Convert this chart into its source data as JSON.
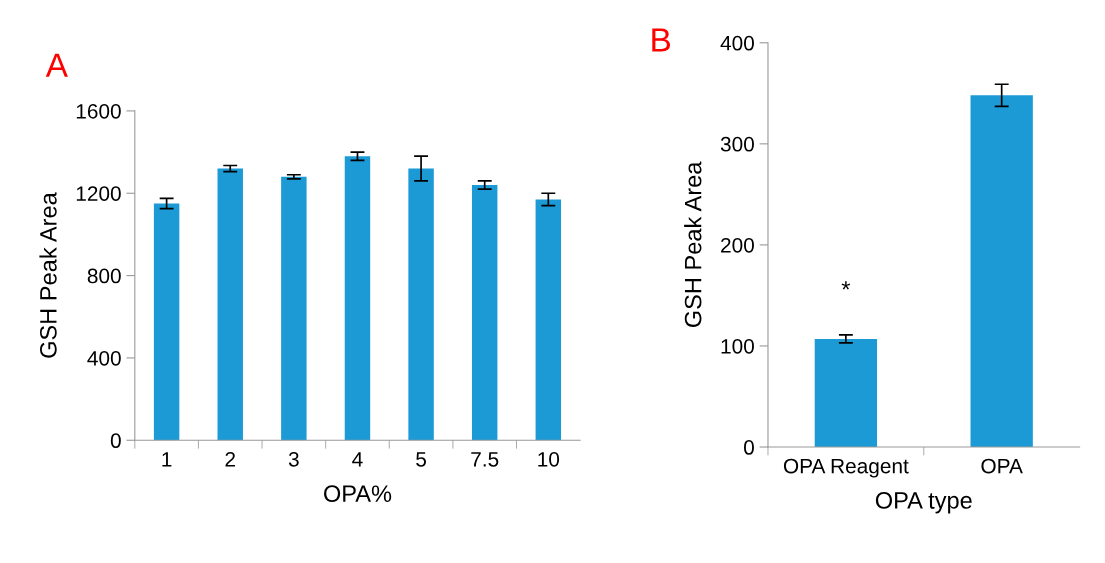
{
  "chart_data": [
    {
      "type": "bar",
      "title": "A",
      "xlabel": "OPA%",
      "ylabel": "GSH Peak Area",
      "categories": [
        "1",
        "2",
        "3",
        "4",
        "5",
        "7.5",
        "10"
      ],
      "values": [
        1150,
        1320,
        1280,
        1380,
        1320,
        1240,
        1170
      ],
      "errors": [
        25,
        15,
        10,
        20,
        60,
        20,
        30
      ],
      "color": "#1b9ad6",
      "ylim": [
        0,
        1600
      ],
      "yticks": [
        0,
        400,
        800,
        1200,
        1600
      ],
      "grid": false
    },
    {
      "type": "bar",
      "title": "B",
      "xlabel": "OPA type",
      "ylabel": "GSH Peak Area",
      "categories": [
        "OPA Reagent",
        "OPA"
      ],
      "values": [
        107,
        348
      ],
      "errors": [
        4,
        11
      ],
      "color": "#1b9ad6",
      "ylim": [
        0,
        400
      ],
      "yticks": [
        0,
        100,
        200,
        300,
        400
      ],
      "grid": false,
      "annotations": [
        "*"
      ]
    }
  ]
}
